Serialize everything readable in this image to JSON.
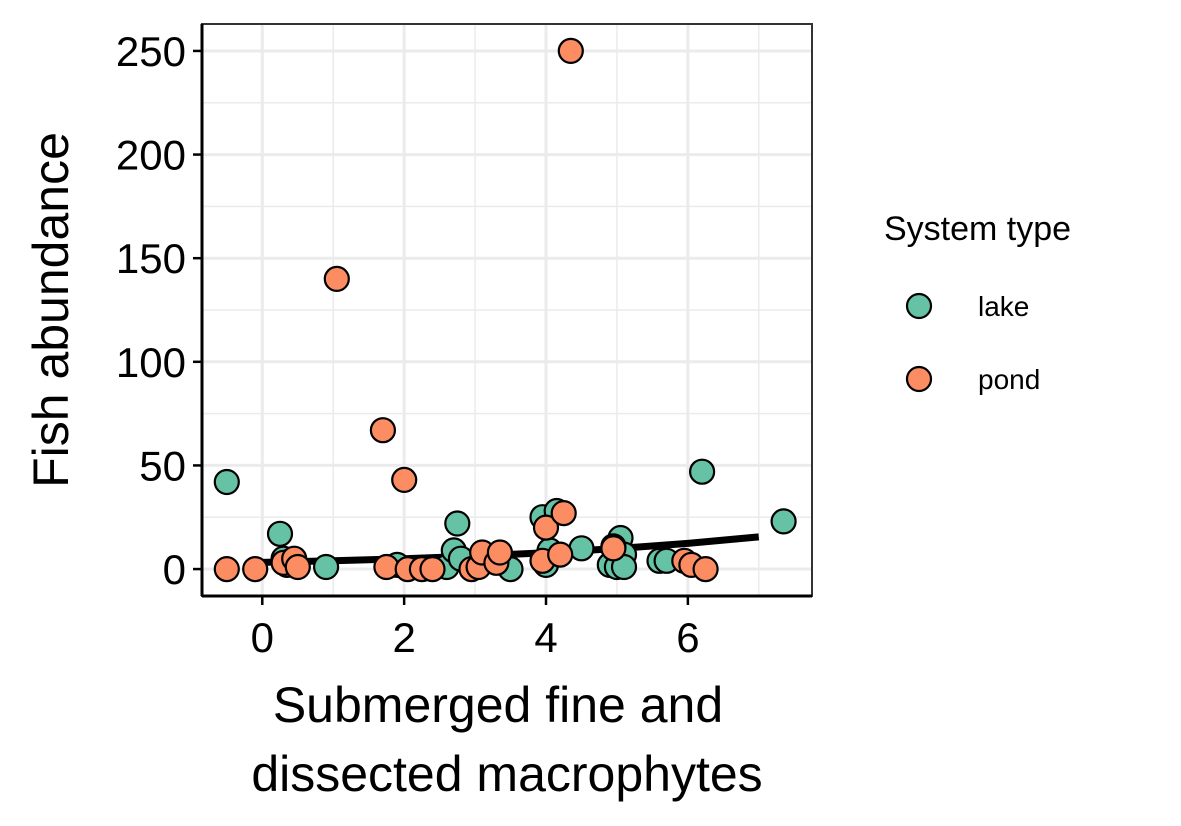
{
  "chart_data": {
    "type": "scatter",
    "xlabel": [
      "Submerged fine and",
      "dissected macrophytes"
    ],
    "ylabel": "Fish abundance",
    "xlim": [
      -0.85,
      7.75
    ],
    "ylim": [
      -13,
      263
    ],
    "x_ticks": [
      0,
      2,
      4,
      6
    ],
    "x_tick_labels": [
      "0",
      "2",
      "4",
      "6"
    ],
    "y_ticks": [
      0,
      50,
      100,
      150,
      200,
      250
    ],
    "y_tick_labels": [
      "0",
      "50",
      "100",
      "150",
      "200",
      "250"
    ],
    "grid": true,
    "legend": {
      "title": "System type",
      "position": "right",
      "entries": [
        {
          "label": "lake",
          "color": "#66c2a5"
        },
        {
          "label": "pond",
          "color": "#fc8d62"
        }
      ]
    },
    "series": [
      {
        "name": "lake",
        "color": "#66c2a5",
        "points": [
          [
            -0.5,
            42
          ],
          [
            0.25,
            17
          ],
          [
            0.3,
            5
          ],
          [
            0.35,
            2
          ],
          [
            0.4,
            4
          ],
          [
            0.9,
            1
          ],
          [
            1.9,
            2
          ],
          [
            2.6,
            1
          ],
          [
            2.7,
            9
          ],
          [
            2.75,
            22
          ],
          [
            2.8,
            5
          ],
          [
            3.5,
            0
          ],
          [
            3.95,
            25
          ],
          [
            4.0,
            2
          ],
          [
            4.05,
            9
          ],
          [
            4.15,
            28
          ],
          [
            4.5,
            10
          ],
          [
            4.9,
            2
          ],
          [
            5.0,
            1
          ],
          [
            5.05,
            15
          ],
          [
            5.1,
            7
          ],
          [
            5.1,
            1
          ],
          [
            5.6,
            4
          ],
          [
            5.7,
            4
          ],
          [
            6.2,
            47
          ],
          [
            7.35,
            23
          ]
        ]
      },
      {
        "name": "pond",
        "color": "#fc8d62",
        "points": [
          [
            -0.5,
            0
          ],
          [
            -0.1,
            0
          ],
          [
            0.3,
            3
          ],
          [
            0.45,
            5
          ],
          [
            0.5,
            1
          ],
          [
            1.05,
            140
          ],
          [
            1.7,
            67
          ],
          [
            1.75,
            1
          ],
          [
            2.0,
            43
          ],
          [
            2.05,
            0
          ],
          [
            2.25,
            0
          ],
          [
            2.4,
            0
          ],
          [
            2.95,
            0
          ],
          [
            3.05,
            1
          ],
          [
            3.1,
            8
          ],
          [
            3.3,
            3
          ],
          [
            3.35,
            8
          ],
          [
            3.95,
            4
          ],
          [
            4.0,
            20
          ],
          [
            4.2,
            7
          ],
          [
            4.25,
            27
          ],
          [
            4.35,
            250
          ],
          [
            4.95,
            11
          ],
          [
            4.95,
            10
          ],
          [
            5.95,
            4
          ],
          [
            6.05,
            2
          ],
          [
            6.25,
            0
          ]
        ]
      }
    ],
    "trend": {
      "color": "#000000",
      "points": [
        [
          0,
          3.2
        ],
        [
          1,
          4.0
        ],
        [
          2,
          5.0
        ],
        [
          3,
          6.3
        ],
        [
          4,
          7.9
        ],
        [
          5,
          9.9
        ],
        [
          6,
          12.4
        ],
        [
          7,
          15.5
        ]
      ]
    }
  }
}
